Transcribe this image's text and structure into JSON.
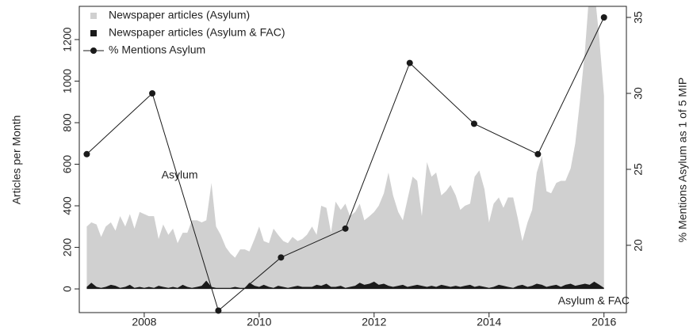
{
  "chart_data": {
    "type": "area-line",
    "ylabel": "Articles per Month",
    "y2label": "% Mentions Asylum as 1 of 5 MIP",
    "xlim": [
      2006.87,
      2016.39
    ],
    "xticks": [
      2008,
      2010,
      2012,
      2014,
      2016
    ],
    "ylim": [
      -114,
      1360
    ],
    "yticks": [
      0,
      200,
      400,
      600,
      800,
      1000,
      1200
    ],
    "y2lim": [
      15.57,
      35.73
    ],
    "y2ticks": [
      20,
      25,
      30,
      35
    ],
    "legend": "top-left",
    "annotations": [
      {
        "text": "Asylum",
        "x": 2008.3,
        "y": 545,
        "color": "#a0a0a0"
      },
      {
        "text": "Asylum & FAC",
        "x": 2015.2,
        "y": -60,
        "color": "#222222"
      }
    ],
    "x": [
      2007,
      2007.08,
      2007.17,
      2007.25,
      2007.33,
      2007.42,
      2007.5,
      2007.58,
      2007.67,
      2007.75,
      2007.83,
      2007.92,
      2008,
      2008.08,
      2008.17,
      2008.25,
      2008.33,
      2008.42,
      2008.5,
      2008.58,
      2008.67,
      2008.75,
      2008.83,
      2008.92,
      2009,
      2009.08,
      2009.17,
      2009.25,
      2009.33,
      2009.42,
      2009.5,
      2009.58,
      2009.67,
      2009.75,
      2009.83,
      2009.92,
      2010,
      2010.08,
      2010.17,
      2010.25,
      2010.33,
      2010.42,
      2010.5,
      2010.58,
      2010.67,
      2010.75,
      2010.83,
      2010.92,
      2011,
      2011.08,
      2011.17,
      2011.25,
      2011.33,
      2011.42,
      2011.5,
      2011.58,
      2011.67,
      2011.75,
      2011.83,
      2011.92,
      2012,
      2012.08,
      2012.17,
      2012.25,
      2012.33,
      2012.42,
      2012.5,
      2012.58,
      2012.67,
      2012.75,
      2012.83,
      2012.92,
      2013,
      2013.08,
      2013.17,
      2013.25,
      2013.33,
      2013.42,
      2013.5,
      2013.58,
      2013.67,
      2013.75,
      2013.83,
      2013.92,
      2014,
      2014.08,
      2014.17,
      2014.25,
      2014.33,
      2014.42,
      2014.5,
      2014.58,
      2014.67,
      2014.75,
      2014.83,
      2014.92,
      2015,
      2015.08,
      2015.17,
      2015.25,
      2015.33,
      2015.42,
      2015.5,
      2015.58,
      2015.67,
      2015.75,
      2015.83,
      2015.92,
      2016
    ],
    "series": [
      {
        "name": "Newspaper articles (Asylum)",
        "color": "#d0d0d0",
        "kind": "area",
        "values": [
          300,
          320,
          310,
          250,
          300,
          320,
          280,
          350,
          300,
          360,
          290,
          370,
          360,
          350,
          350,
          240,
          310,
          260,
          290,
          220,
          270,
          270,
          330,
          330,
          320,
          330,
          510,
          300,
          260,
          200,
          170,
          150,
          190,
          190,
          180,
          240,
          300,
          230,
          220,
          290,
          260,
          230,
          220,
          250,
          230,
          240,
          260,
          300,
          260,
          400,
          390,
          270,
          420,
          380,
          410,
          350,
          370,
          410,
          330,
          350,
          370,
          400,
          460,
          560,
          450,
          370,
          330,
          430,
          540,
          520,
          350,
          610,
          540,
          560,
          450,
          470,
          500,
          450,
          380,
          400,
          410,
          540,
          570,
          480,
          320,
          410,
          440,
          390,
          440,
          440,
          340,
          230,
          320,
          380,
          560,
          640,
          470,
          460,
          510,
          520,
          520,
          580,
          700,
          900,
          1150,
          1450,
          1450,
          1200,
          930
        ]
      },
      {
        "name": "Newspaper articles (Asylum & FAC)",
        "color": "#1a1a1a",
        "kind": "area",
        "values": [
          10,
          30,
          10,
          5,
          10,
          20,
          15,
          5,
          10,
          20,
          5,
          10,
          5,
          10,
          5,
          15,
          10,
          5,
          10,
          5,
          20,
          10,
          5,
          10,
          15,
          40,
          10,
          5,
          5,
          5,
          5,
          10,
          5,
          5,
          30,
          15,
          10,
          20,
          10,
          5,
          15,
          10,
          5,
          10,
          15,
          10,
          10,
          10,
          20,
          15,
          25,
          10,
          10,
          15,
          5,
          10,
          15,
          30,
          20,
          25,
          35,
          20,
          25,
          15,
          10,
          15,
          20,
          10,
          15,
          20,
          15,
          10,
          15,
          10,
          20,
          15,
          10,
          15,
          10,
          15,
          20,
          10,
          15,
          10,
          5,
          10,
          20,
          15,
          10,
          5,
          15,
          20,
          10,
          15,
          25,
          20,
          10,
          15,
          20,
          10,
          20,
          25,
          15,
          20,
          25,
          20,
          35,
          20,
          5
        ]
      },
      {
        "name": "% Mentions Asylum",
        "color": "#1a1a1a",
        "kind": "line",
        "axis": "y2",
        "x": [
          2007,
          2008.14,
          2009.29,
          2010.38,
          2011.5,
          2012.62,
          2013.74,
          2014.85,
          2016
        ],
        "values": [
          26,
          30,
          15.7,
          19.2,
          21.1,
          32,
          28,
          26,
          35
        ]
      }
    ]
  }
}
